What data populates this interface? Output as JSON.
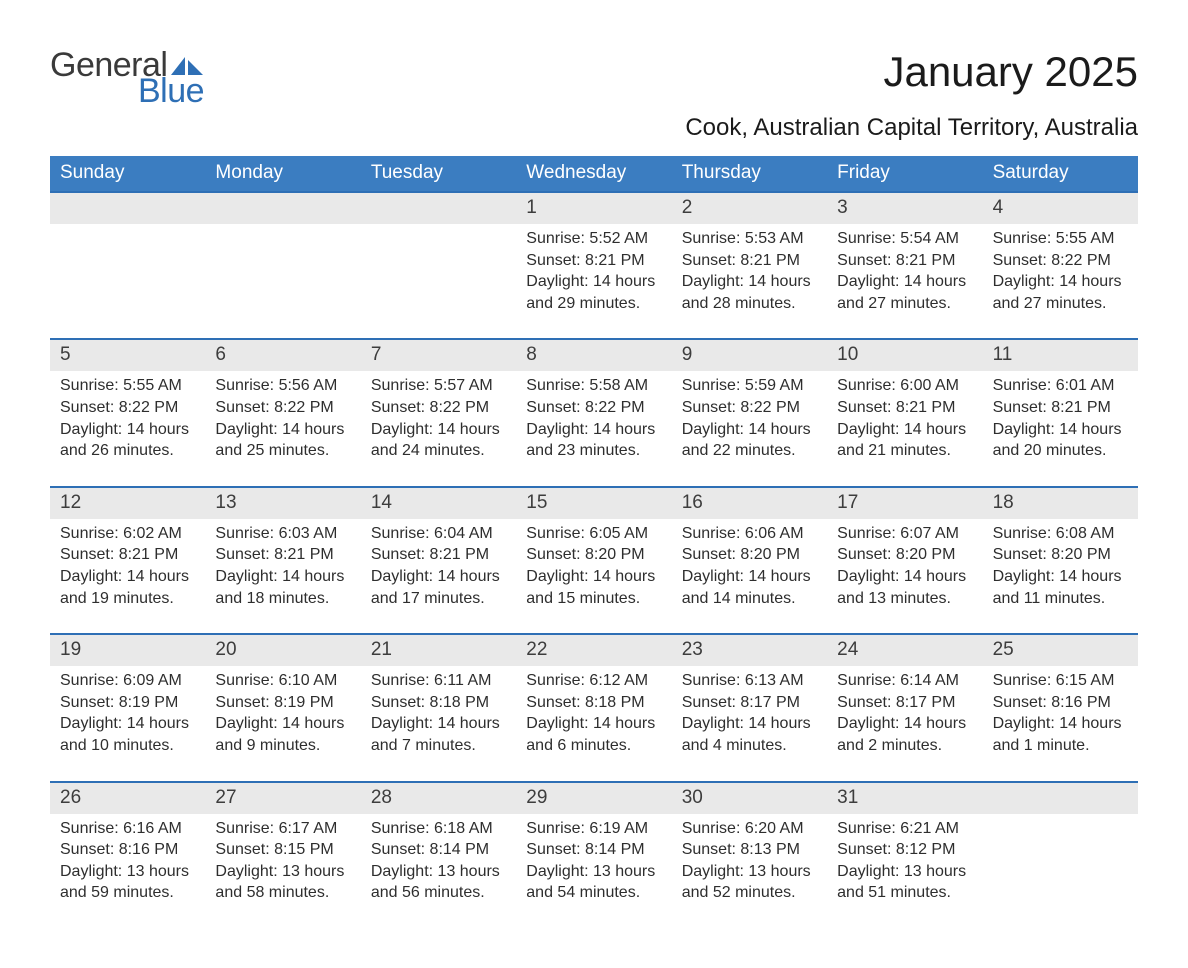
{
  "logo": {
    "word1": "General",
    "word2": "Blue",
    "sail_color": "#2e6fb5"
  },
  "title": "January 2025",
  "location": "Cook, Australian Capital Territory, Australia",
  "colors": {
    "header_blue": "#3b7dc1",
    "accent_blue": "#2e6fb5",
    "row_grey": "#e9e9e9",
    "background": "#ffffff",
    "text": "#282828"
  },
  "weekdays": [
    "Sunday",
    "Monday",
    "Tuesday",
    "Wednesday",
    "Thursday",
    "Friday",
    "Saturday"
  ],
  "weeks": [
    [
      null,
      null,
      null,
      {
        "n": "1",
        "sunrise": "Sunrise: 5:52 AM",
        "sunset": "Sunset: 8:21 PM",
        "daylight": "Daylight: 14 hours and 29 minutes."
      },
      {
        "n": "2",
        "sunrise": "Sunrise: 5:53 AM",
        "sunset": "Sunset: 8:21 PM",
        "daylight": "Daylight: 14 hours and 28 minutes."
      },
      {
        "n": "3",
        "sunrise": "Sunrise: 5:54 AM",
        "sunset": "Sunset: 8:21 PM",
        "daylight": "Daylight: 14 hours and 27 minutes."
      },
      {
        "n": "4",
        "sunrise": "Sunrise: 5:55 AM",
        "sunset": "Sunset: 8:22 PM",
        "daylight": "Daylight: 14 hours and 27 minutes."
      }
    ],
    [
      {
        "n": "5",
        "sunrise": "Sunrise: 5:55 AM",
        "sunset": "Sunset: 8:22 PM",
        "daylight": "Daylight: 14 hours and 26 minutes."
      },
      {
        "n": "6",
        "sunrise": "Sunrise: 5:56 AM",
        "sunset": "Sunset: 8:22 PM",
        "daylight": "Daylight: 14 hours and 25 minutes."
      },
      {
        "n": "7",
        "sunrise": "Sunrise: 5:57 AM",
        "sunset": "Sunset: 8:22 PM",
        "daylight": "Daylight: 14 hours and 24 minutes."
      },
      {
        "n": "8",
        "sunrise": "Sunrise: 5:58 AM",
        "sunset": "Sunset: 8:22 PM",
        "daylight": "Daylight: 14 hours and 23 minutes."
      },
      {
        "n": "9",
        "sunrise": "Sunrise: 5:59 AM",
        "sunset": "Sunset: 8:22 PM",
        "daylight": "Daylight: 14 hours and 22 minutes."
      },
      {
        "n": "10",
        "sunrise": "Sunrise: 6:00 AM",
        "sunset": "Sunset: 8:21 PM",
        "daylight": "Daylight: 14 hours and 21 minutes."
      },
      {
        "n": "11",
        "sunrise": "Sunrise: 6:01 AM",
        "sunset": "Sunset: 8:21 PM",
        "daylight": "Daylight: 14 hours and 20 minutes."
      }
    ],
    [
      {
        "n": "12",
        "sunrise": "Sunrise: 6:02 AM",
        "sunset": "Sunset: 8:21 PM",
        "daylight": "Daylight: 14 hours and 19 minutes."
      },
      {
        "n": "13",
        "sunrise": "Sunrise: 6:03 AM",
        "sunset": "Sunset: 8:21 PM",
        "daylight": "Daylight: 14 hours and 18 minutes."
      },
      {
        "n": "14",
        "sunrise": "Sunrise: 6:04 AM",
        "sunset": "Sunset: 8:21 PM",
        "daylight": "Daylight: 14 hours and 17 minutes."
      },
      {
        "n": "15",
        "sunrise": "Sunrise: 6:05 AM",
        "sunset": "Sunset: 8:20 PM",
        "daylight": "Daylight: 14 hours and 15 minutes."
      },
      {
        "n": "16",
        "sunrise": "Sunrise: 6:06 AM",
        "sunset": "Sunset: 8:20 PM",
        "daylight": "Daylight: 14 hours and 14 minutes."
      },
      {
        "n": "17",
        "sunrise": "Sunrise: 6:07 AM",
        "sunset": "Sunset: 8:20 PM",
        "daylight": "Daylight: 14 hours and 13 minutes."
      },
      {
        "n": "18",
        "sunrise": "Sunrise: 6:08 AM",
        "sunset": "Sunset: 8:20 PM",
        "daylight": "Daylight: 14 hours and 11 minutes."
      }
    ],
    [
      {
        "n": "19",
        "sunrise": "Sunrise: 6:09 AM",
        "sunset": "Sunset: 8:19 PM",
        "daylight": "Daylight: 14 hours and 10 minutes."
      },
      {
        "n": "20",
        "sunrise": "Sunrise: 6:10 AM",
        "sunset": "Sunset: 8:19 PM",
        "daylight": "Daylight: 14 hours and 9 minutes."
      },
      {
        "n": "21",
        "sunrise": "Sunrise: 6:11 AM",
        "sunset": "Sunset: 8:18 PM",
        "daylight": "Daylight: 14 hours and 7 minutes."
      },
      {
        "n": "22",
        "sunrise": "Sunrise: 6:12 AM",
        "sunset": "Sunset: 8:18 PM",
        "daylight": "Daylight: 14 hours and 6 minutes."
      },
      {
        "n": "23",
        "sunrise": "Sunrise: 6:13 AM",
        "sunset": "Sunset: 8:17 PM",
        "daylight": "Daylight: 14 hours and 4 minutes."
      },
      {
        "n": "24",
        "sunrise": "Sunrise: 6:14 AM",
        "sunset": "Sunset: 8:17 PM",
        "daylight": "Daylight: 14 hours and 2 minutes."
      },
      {
        "n": "25",
        "sunrise": "Sunrise: 6:15 AM",
        "sunset": "Sunset: 8:16 PM",
        "daylight": "Daylight: 14 hours and 1 minute."
      }
    ],
    [
      {
        "n": "26",
        "sunrise": "Sunrise: 6:16 AM",
        "sunset": "Sunset: 8:16 PM",
        "daylight": "Daylight: 13 hours and 59 minutes."
      },
      {
        "n": "27",
        "sunrise": "Sunrise: 6:17 AM",
        "sunset": "Sunset: 8:15 PM",
        "daylight": "Daylight: 13 hours and 58 minutes."
      },
      {
        "n": "28",
        "sunrise": "Sunrise: 6:18 AM",
        "sunset": "Sunset: 8:14 PM",
        "daylight": "Daylight: 13 hours and 56 minutes."
      },
      {
        "n": "29",
        "sunrise": "Sunrise: 6:19 AM",
        "sunset": "Sunset: 8:14 PM",
        "daylight": "Daylight: 13 hours and 54 minutes."
      },
      {
        "n": "30",
        "sunrise": "Sunrise: 6:20 AM",
        "sunset": "Sunset: 8:13 PM",
        "daylight": "Daylight: 13 hours and 52 minutes."
      },
      {
        "n": "31",
        "sunrise": "Sunrise: 6:21 AM",
        "sunset": "Sunset: 8:12 PM",
        "daylight": "Daylight: 13 hours and 51 minutes."
      },
      null
    ]
  ]
}
